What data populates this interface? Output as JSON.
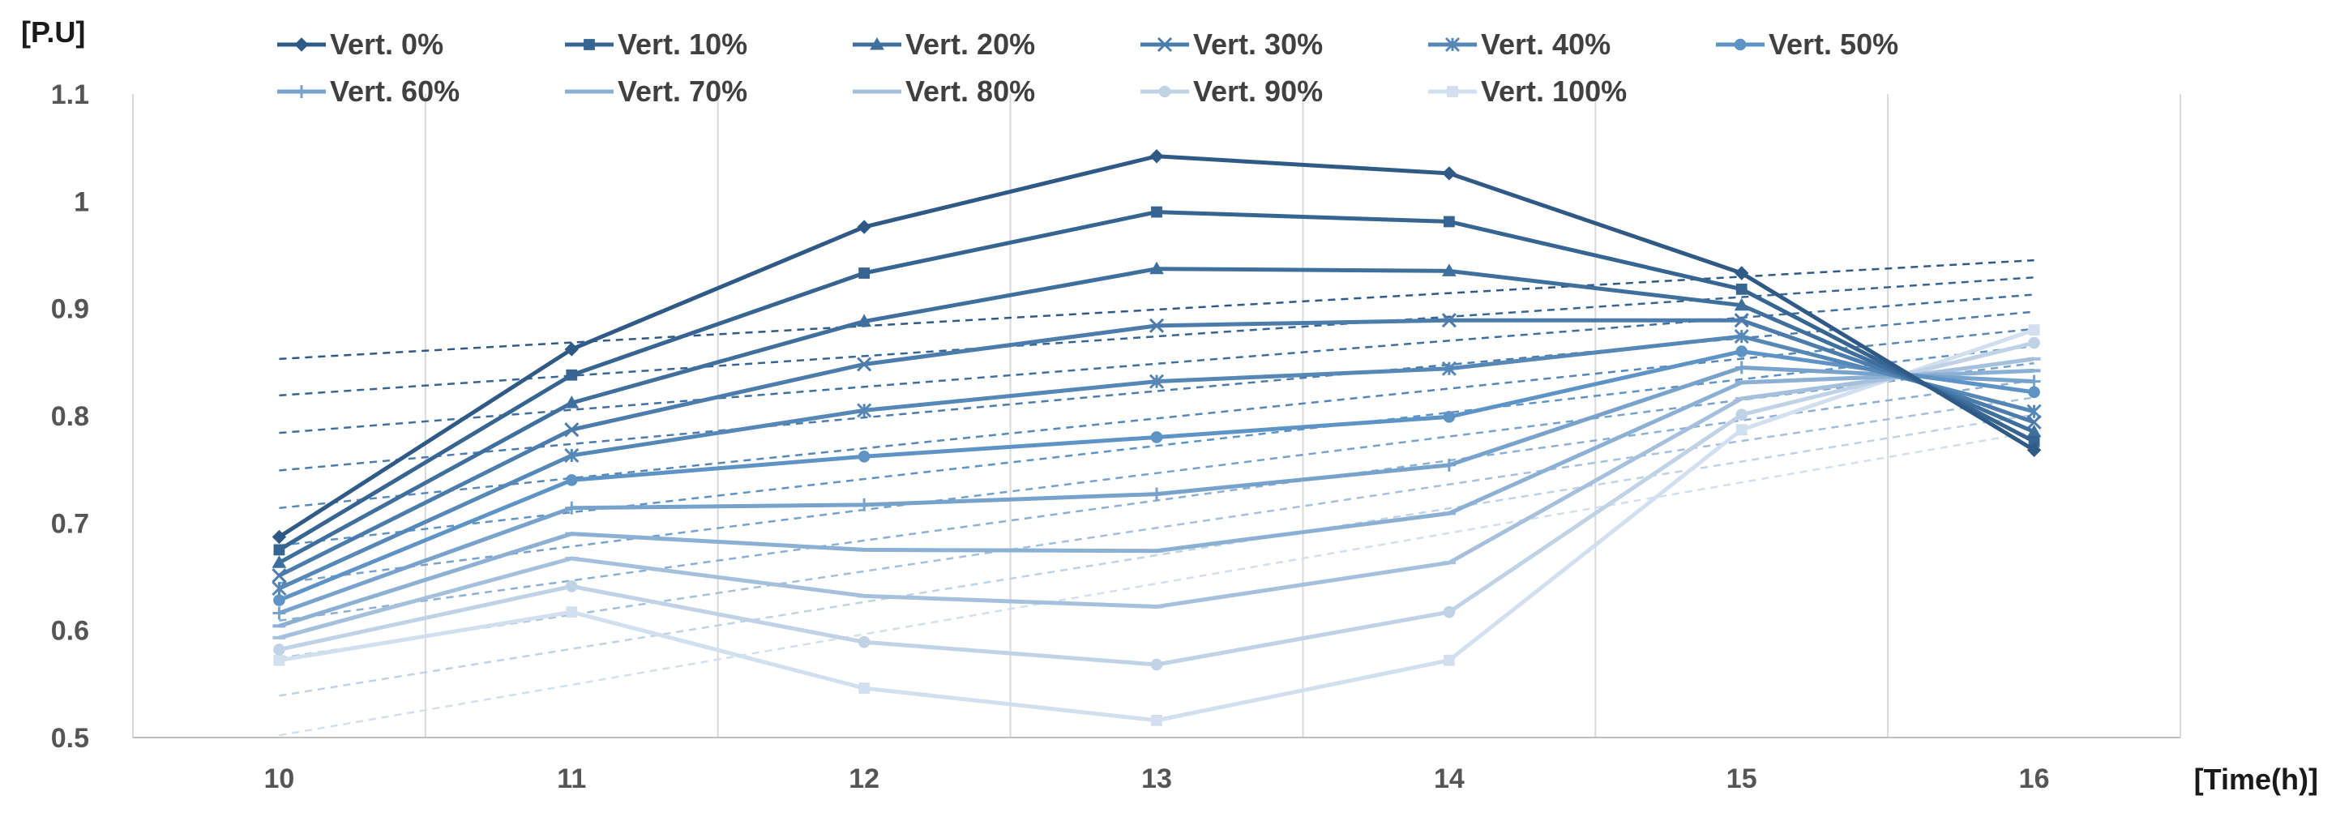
{
  "chart_data": {
    "type": "line",
    "ylabel": "[P.U]",
    "xlabel": "[Time(h)]",
    "x": [
      10,
      11,
      12,
      13,
      14,
      15,
      16
    ],
    "x_tick_labels": [
      "10",
      "11",
      "12",
      "13",
      "14",
      "15",
      "16"
    ],
    "xlim": [
      9.5,
      16.5
    ],
    "ylim": [
      0.5,
      1.1
    ],
    "y_ticks": [
      0.5,
      0.6,
      0.7,
      0.8,
      0.9,
      1.0,
      1.1
    ],
    "y_tick_labels": [
      "0.5",
      "0.6",
      "0.7",
      "0.8",
      "0.9",
      "1",
      "1.1"
    ],
    "vertical_grid": true,
    "horizontal_grid": false,
    "legend_position": "top",
    "trendlines": "dashed linear trendline per series",
    "series": [
      {
        "name": "Vert. 0%",
        "marker": "diamond",
        "color": "#2f5a85",
        "values": [
          0.687,
          0.862,
          0.976,
          1.042,
          1.026,
          0.933,
          0.768
        ],
        "trend": [
          0.853,
          0.945
        ]
      },
      {
        "name": "Vert. 10%",
        "marker": "square",
        "color": "#376591",
        "values": [
          0.675,
          0.838,
          0.933,
          0.99,
          0.981,
          0.918,
          0.776
        ],
        "trend": [
          0.819,
          0.929
        ]
      },
      {
        "name": "Vert. 20%",
        "marker": "triangle",
        "color": "#3f709d",
        "values": [
          0.663,
          0.812,
          0.888,
          0.937,
          0.935,
          0.903,
          0.785
        ],
        "trend": [
          0.784,
          0.913
        ]
      },
      {
        "name": "Vert. 30%",
        "marker": "x",
        "color": "#4b7cab",
        "values": [
          0.651,
          0.787,
          0.848,
          0.884,
          0.889,
          0.889,
          0.794
        ],
        "trend": [
          0.749,
          0.897
        ]
      },
      {
        "name": "Vert. 40%",
        "marker": "asterisk",
        "color": "#5587b7",
        "values": [
          0.639,
          0.763,
          0.805,
          0.832,
          0.844,
          0.874,
          0.804
        ],
        "trend": [
          0.714,
          0.881
        ]
      },
      {
        "name": "Vert. 50%",
        "marker": "circle",
        "color": "#5e93c6",
        "values": [
          0.628,
          0.74,
          0.762,
          0.78,
          0.799,
          0.86,
          0.822
        ],
        "trend": [
          0.679,
          0.865
        ]
      },
      {
        "name": "Vert. 60%",
        "marker": "plus",
        "color": "#76a2cc",
        "values": [
          0.616,
          0.714,
          0.717,
          0.727,
          0.754,
          0.845,
          0.832
        ],
        "trend": [
          0.644,
          0.849
        ]
      },
      {
        "name": "Vert. 70%",
        "marker": "dash",
        "color": "#8bb0d4",
        "values": [
          0.604,
          0.69,
          0.675,
          0.674,
          0.709,
          0.831,
          0.842
        ],
        "trend": [
          0.609,
          0.833
        ]
      },
      {
        "name": "Vert. 80%",
        "marker": "dash",
        "color": "#a5c0dc",
        "values": [
          0.593,
          0.667,
          0.632,
          0.622,
          0.663,
          0.816,
          0.853
        ],
        "trend": [
          0.574,
          0.817
        ]
      },
      {
        "name": "Vert. 90%",
        "marker": "circle",
        "color": "#bfd2e6",
        "values": [
          0.582,
          0.641,
          0.589,
          0.568,
          0.617,
          0.801,
          0.868
        ],
        "trend": [
          0.539,
          0.801
        ]
      },
      {
        "name": "Vert. 100%",
        "marker": "square",
        "color": "#d2dfee",
        "values": [
          0.572,
          0.617,
          0.546,
          0.516,
          0.572,
          0.787,
          0.88
        ],
        "trend": [
          0.502,
          0.785
        ]
      }
    ]
  }
}
